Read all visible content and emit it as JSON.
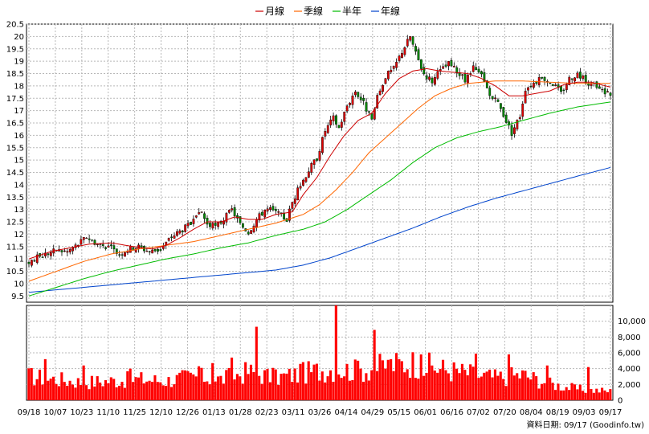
{
  "chart_data": [
    {
      "type": "candlestick",
      "legend": [
        {
          "name": "月線",
          "color": "#cc0000"
        },
        {
          "name": "季線",
          "color": "#ff6600"
        },
        {
          "name": "半年",
          "color": "#00bb00"
        },
        {
          "name": "年線",
          "color": "#0044cc"
        }
      ],
      "ylim": [
        9.25,
        20.5
      ],
      "yticks": [
        "20.5",
        "20",
        "19.5",
        "19",
        "18.5",
        "18",
        "17.5",
        "17",
        "16.5",
        "16",
        "15.5",
        "15",
        "14.5",
        "14",
        "13.5",
        "13",
        "12.5",
        "12",
        "11.5",
        "11",
        "10.5",
        "10",
        "9.5"
      ],
      "grid": true,
      "close_path": [
        [
          0,
          10.9
        ],
        [
          6,
          11.2
        ],
        [
          10,
          11.35
        ],
        [
          14,
          11.3
        ],
        [
          18,
          11.6
        ],
        [
          21,
          11.9
        ],
        [
          25,
          11.6
        ],
        [
          29,
          11.5
        ],
        [
          33,
          11.2
        ],
        [
          36,
          11.4
        ],
        [
          40,
          11.5
        ],
        [
          44,
          11.3
        ],
        [
          48,
          11.4
        ],
        [
          52,
          11.9
        ],
        [
          56,
          12.2
        ],
        [
          60,
          12.5
        ],
        [
          63,
          12.9
        ],
        [
          65,
          12.4
        ],
        [
          68,
          12.3
        ],
        [
          71,
          12.6
        ],
        [
          74,
          13.0
        ],
        [
          77,
          12.4
        ],
        [
          80,
          12.1
        ],
        [
          83,
          12.6
        ],
        [
          86,
          13.0
        ],
        [
          88,
          13.0
        ],
        [
          91,
          12.8
        ],
        [
          94,
          12.6
        ],
        [
          96,
          13.3
        ],
        [
          99,
          14.0
        ],
        [
          102,
          14.6
        ],
        [
          105,
          15.1
        ],
        [
          108,
          16.2
        ],
        [
          111,
          16.7
        ],
        [
          113,
          16.3
        ],
        [
          116,
          17.2
        ],
        [
          119,
          17.8
        ],
        [
          122,
          17.3
        ],
        [
          125,
          16.6
        ],
        [
          127,
          17.5
        ],
        [
          130,
          18.4
        ],
        [
          133,
          18.7
        ],
        [
          136,
          19.4
        ],
        [
          139,
          20.0
        ],
        [
          141,
          19.3
        ],
        [
          144,
          18.5
        ],
        [
          147,
          18.2
        ],
        [
          150,
          18.6
        ],
        [
          153,
          18.9
        ],
        [
          156,
          18.6
        ],
        [
          159,
          18.2
        ],
        [
          162,
          18.7
        ],
        [
          165,
          18.4
        ],
        [
          168,
          17.6
        ],
        [
          171,
          17.3
        ],
        [
          174,
          16.6
        ],
        [
          176,
          16.1
        ],
        [
          179,
          16.8
        ],
        [
          181,
          17.9
        ],
        [
          185,
          18.2
        ],
        [
          188,
          18.3
        ],
        [
          191,
          18.1
        ],
        [
          194,
          17.7
        ],
        [
          197,
          18.3
        ],
        [
          200,
          18.5
        ],
        [
          203,
          18.2
        ],
        [
          206,
          18.0
        ],
        [
          209,
          17.8
        ],
        [
          212,
          17.7
        ]
      ],
      "ma_month": [
        [
          0,
          11.0
        ],
        [
          8,
          11.3
        ],
        [
          15,
          11.45
        ],
        [
          22,
          11.6
        ],
        [
          30,
          11.65
        ],
        [
          38,
          11.5
        ],
        [
          45,
          11.4
        ],
        [
          50,
          11.55
        ],
        [
          55,
          11.85
        ],
        [
          60,
          12.2
        ],
        [
          65,
          12.5
        ],
        [
          70,
          12.5
        ],
        [
          75,
          12.7
        ],
        [
          80,
          12.6
        ],
        [
          85,
          12.6
        ],
        [
          90,
          12.8
        ],
        [
          96,
          12.9
        ],
        [
          100,
          13.6
        ],
        [
          105,
          14.3
        ],
        [
          110,
          15.2
        ],
        [
          115,
          16.0
        ],
        [
          120,
          16.6
        ],
        [
          125,
          16.9
        ],
        [
          130,
          17.7
        ],
        [
          135,
          18.3
        ],
        [
          140,
          18.6
        ],
        [
          145,
          18.7
        ],
        [
          150,
          18.6
        ],
        [
          155,
          18.55
        ],
        [
          160,
          18.5
        ],
        [
          165,
          18.3
        ],
        [
          170,
          18.0
        ],
        [
          175,
          17.6
        ],
        [
          180,
          17.6
        ],
        [
          185,
          17.7
        ],
        [
          190,
          17.8
        ],
        [
          195,
          18.05
        ],
        [
          200,
          18.15
        ],
        [
          205,
          18.15
        ],
        [
          212,
          17.95
        ]
      ],
      "ma_quarter": [
        [
          0,
          10.1
        ],
        [
          10,
          10.5
        ],
        [
          20,
          10.9
        ],
        [
          30,
          11.2
        ],
        [
          40,
          11.4
        ],
        [
          50,
          11.55
        ],
        [
          60,
          11.7
        ],
        [
          70,
          11.95
        ],
        [
          80,
          12.2
        ],
        [
          90,
          12.45
        ],
        [
          100,
          12.8
        ],
        [
          106,
          13.2
        ],
        [
          112,
          13.8
        ],
        [
          118,
          14.5
        ],
        [
          124,
          15.3
        ],
        [
          130,
          15.9
        ],
        [
          136,
          16.5
        ],
        [
          142,
          17.1
        ],
        [
          148,
          17.6
        ],
        [
          154,
          17.9
        ],
        [
          160,
          18.1
        ],
        [
          170,
          18.2
        ],
        [
          180,
          18.2
        ],
        [
          190,
          18.15
        ],
        [
          200,
          18.1
        ],
        [
          212,
          18.1
        ]
      ],
      "ma_half": [
        [
          0,
          9.5
        ],
        [
          10,
          9.85
        ],
        [
          20,
          10.2
        ],
        [
          30,
          10.5
        ],
        [
          40,
          10.75
        ],
        [
          50,
          11.0
        ],
        [
          60,
          11.2
        ],
        [
          70,
          11.45
        ],
        [
          80,
          11.65
        ],
        [
          90,
          11.95
        ],
        [
          100,
          12.2
        ],
        [
          108,
          12.5
        ],
        [
          116,
          13.0
        ],
        [
          124,
          13.6
        ],
        [
          132,
          14.2
        ],
        [
          140,
          14.9
        ],
        [
          148,
          15.5
        ],
        [
          156,
          15.9
        ],
        [
          164,
          16.15
        ],
        [
          172,
          16.35
        ],
        [
          180,
          16.6
        ],
        [
          190,
          16.9
        ],
        [
          200,
          17.15
        ],
        [
          212,
          17.35
        ]
      ],
      "ma_year": [
        [
          0,
          9.65
        ],
        [
          15,
          9.8
        ],
        [
          30,
          9.95
        ],
        [
          45,
          10.1
        ],
        [
          60,
          10.25
        ],
        [
          75,
          10.4
        ],
        [
          90,
          10.55
        ],
        [
          100,
          10.75
        ],
        [
          110,
          11.05
        ],
        [
          120,
          11.45
        ],
        [
          130,
          11.85
        ],
        [
          140,
          12.25
        ],
        [
          150,
          12.7
        ],
        [
          160,
          13.1
        ],
        [
          170,
          13.45
        ],
        [
          180,
          13.75
        ],
        [
          190,
          14.05
        ],
        [
          200,
          14.35
        ],
        [
          212,
          14.7
        ]
      ],
      "n_days": 213,
      "seed": 17
    },
    {
      "type": "bar",
      "ylim": [
        0,
        12000
      ],
      "yticks": [
        "10,000",
        "8,000",
        "6,000",
        "4,000",
        "2,000",
        "0"
      ],
      "color": "#ff0000",
      "volume_profile": [
        [
          0,
          3200
        ],
        [
          20,
          2400
        ],
        [
          40,
          2800
        ],
        [
          50,
          2600
        ],
        [
          60,
          3200
        ],
        [
          70,
          2800
        ],
        [
          80,
          3800
        ],
        [
          90,
          3000
        ],
        [
          100,
          3600
        ],
        [
          110,
          4200
        ],
        [
          120,
          3900
        ],
        [
          130,
          4600
        ],
        [
          140,
          5000
        ],
        [
          150,
          4200
        ],
        [
          160,
          3600
        ],
        [
          170,
          3000
        ],
        [
          180,
          3400
        ],
        [
          190,
          2200
        ],
        [
          200,
          1500
        ],
        [
          212,
          1200
        ]
      ],
      "spikes": [
        [
          6,
          5200
        ],
        [
          20,
          4400
        ],
        [
          37,
          4000
        ],
        [
          62,
          4300
        ],
        [
          67,
          4700
        ],
        [
          74,
          5400
        ],
        [
          83,
          9300
        ],
        [
          90,
          3900
        ],
        [
          99,
          4600
        ],
        [
          112,
          12000
        ],
        [
          120,
          5000
        ],
        [
          126,
          8900
        ],
        [
          132,
          5200
        ],
        [
          143,
          5800
        ],
        [
          163,
          5900
        ],
        [
          175,
          5800
        ],
        [
          189,
          4400
        ],
        [
          204,
          4200
        ]
      ]
    }
  ],
  "xticks": [
    "09/18",
    "10/07",
    "10/23",
    "11/10",
    "11/25",
    "12/10",
    "12/26",
    "01/13",
    "01/28",
    "02/23",
    "03/11",
    "03/26",
    "04/14",
    "04/29",
    "05/15",
    "06/01",
    "06/16",
    "07/02",
    "07/20",
    "08/04",
    "08/19",
    "09/03",
    "09/17"
  ],
  "footer": "資料日期: 09/17  (Goodinfo.tw)"
}
